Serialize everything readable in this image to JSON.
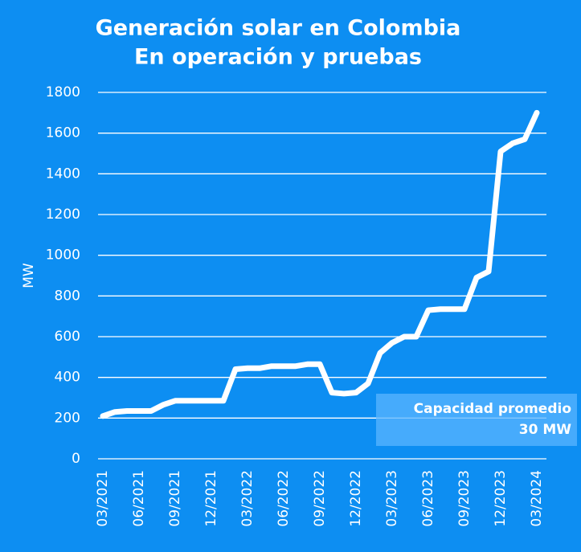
{
  "chart_data": {
    "type": "line",
    "title": [
      "Generación solar en Colombia",
      "En operación y pruebas"
    ],
    "y_label": "MW",
    "categories": [
      "03/2021",
      null,
      null,
      "06/2021",
      null,
      null,
      "09/2021",
      null,
      null,
      "12/2021",
      null,
      null,
      "03/2022",
      null,
      null,
      "06/2022",
      null,
      null,
      "09/2022",
      null,
      null,
      "12/2022",
      null,
      null,
      "03/2023",
      null,
      null,
      "06/2023",
      null,
      null,
      "09/2023",
      null,
      null,
      "12/2023",
      null,
      null,
      "03/2024"
    ],
    "series": [
      {
        "name": "Capacidad",
        "color": "#ffffff",
        "values": [
          210,
          230,
          235,
          235,
          235,
          265,
          285,
          285,
          285,
          285,
          285,
          440,
          445,
          445,
          455,
          455,
          455,
          465,
          465,
          325,
          320,
          325,
          370,
          520,
          570,
          600,
          600,
          730,
          735,
          735,
          735,
          890,
          920,
          1510,
          1550,
          1570,
          1700
        ]
      }
    ],
    "ylim": [
      0,
      1800
    ],
    "yticks": [
      0,
      200,
      400,
      600,
      800,
      1000,
      1200,
      1400,
      1600,
      1800
    ],
    "grid": true,
    "annotation": [
      "Capacidad promedio",
      "30 MW"
    ]
  }
}
